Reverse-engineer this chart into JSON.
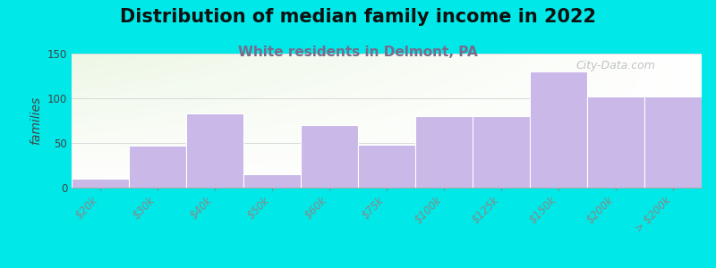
{
  "title": "Distribution of median family income in 2022",
  "subtitle": "White residents in Delmont, PA",
  "categories": [
    "$20k",
    "$30k",
    "$40k",
    "$50k",
    "$60k",
    "$75k",
    "$100k",
    "$125k",
    "$150k",
    "$200k",
    "> $200k"
  ],
  "values": [
    10,
    47,
    83,
    15,
    70,
    48,
    80,
    80,
    130,
    102,
    102
  ],
  "bar_color": "#c9b8e8",
  "bar_edge_color": "#b8a8d8",
  "background_color": "#00e8e8",
  "title_fontsize": 15,
  "subtitle_fontsize": 11,
  "subtitle_color": "#7a6a8a",
  "ylabel": "families",
  "ylabel_fontsize": 10,
  "tick_fontsize": 8.5,
  "ylim": [
    0,
    150
  ],
  "yticks": [
    0,
    50,
    100,
    150
  ],
  "watermark": "City-Data.com",
  "watermark_color": "#aaaaaa"
}
